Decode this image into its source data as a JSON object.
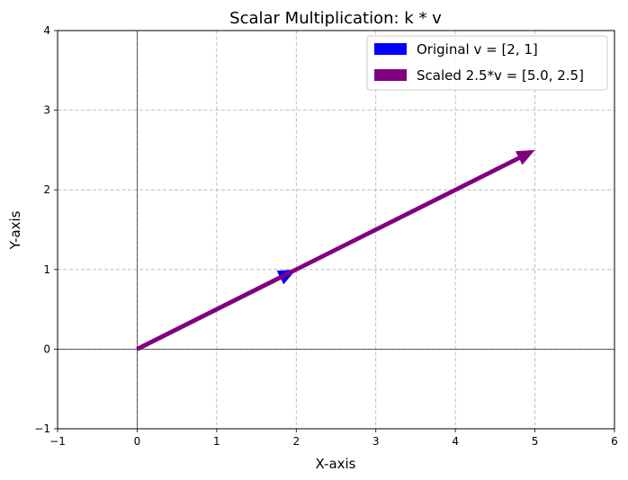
{
  "chart_data": {
    "type": "quiver",
    "title": "Scalar Multiplication: k * v",
    "xlabel": "X-axis",
    "ylabel": "Y-axis",
    "xlim": [
      -1,
      6
    ],
    "ylim": [
      -1,
      4
    ],
    "xticks": [
      -1,
      0,
      1,
      2,
      3,
      4,
      5,
      6
    ],
    "yticks": [
      -1,
      0,
      1,
      2,
      3,
      4
    ],
    "xtick_labels": [
      "−1",
      "0",
      "1",
      "2",
      "3",
      "4",
      "5",
      "6"
    ],
    "ytick_labels": [
      "−1",
      "0",
      "1",
      "2",
      "3",
      "4"
    ],
    "grid": true,
    "legend_position": "top-right",
    "series": [
      {
        "name": "Original v = [2, 1]",
        "color": "#0000ff",
        "origin": [
          0,
          0
        ],
        "vector": [
          2,
          1
        ]
      },
      {
        "name": "Scaled 2.5*v = [5.0, 2.5]",
        "color": "#800080",
        "origin": [
          0,
          0
        ],
        "vector": [
          5.0,
          2.5
        ]
      }
    ]
  }
}
